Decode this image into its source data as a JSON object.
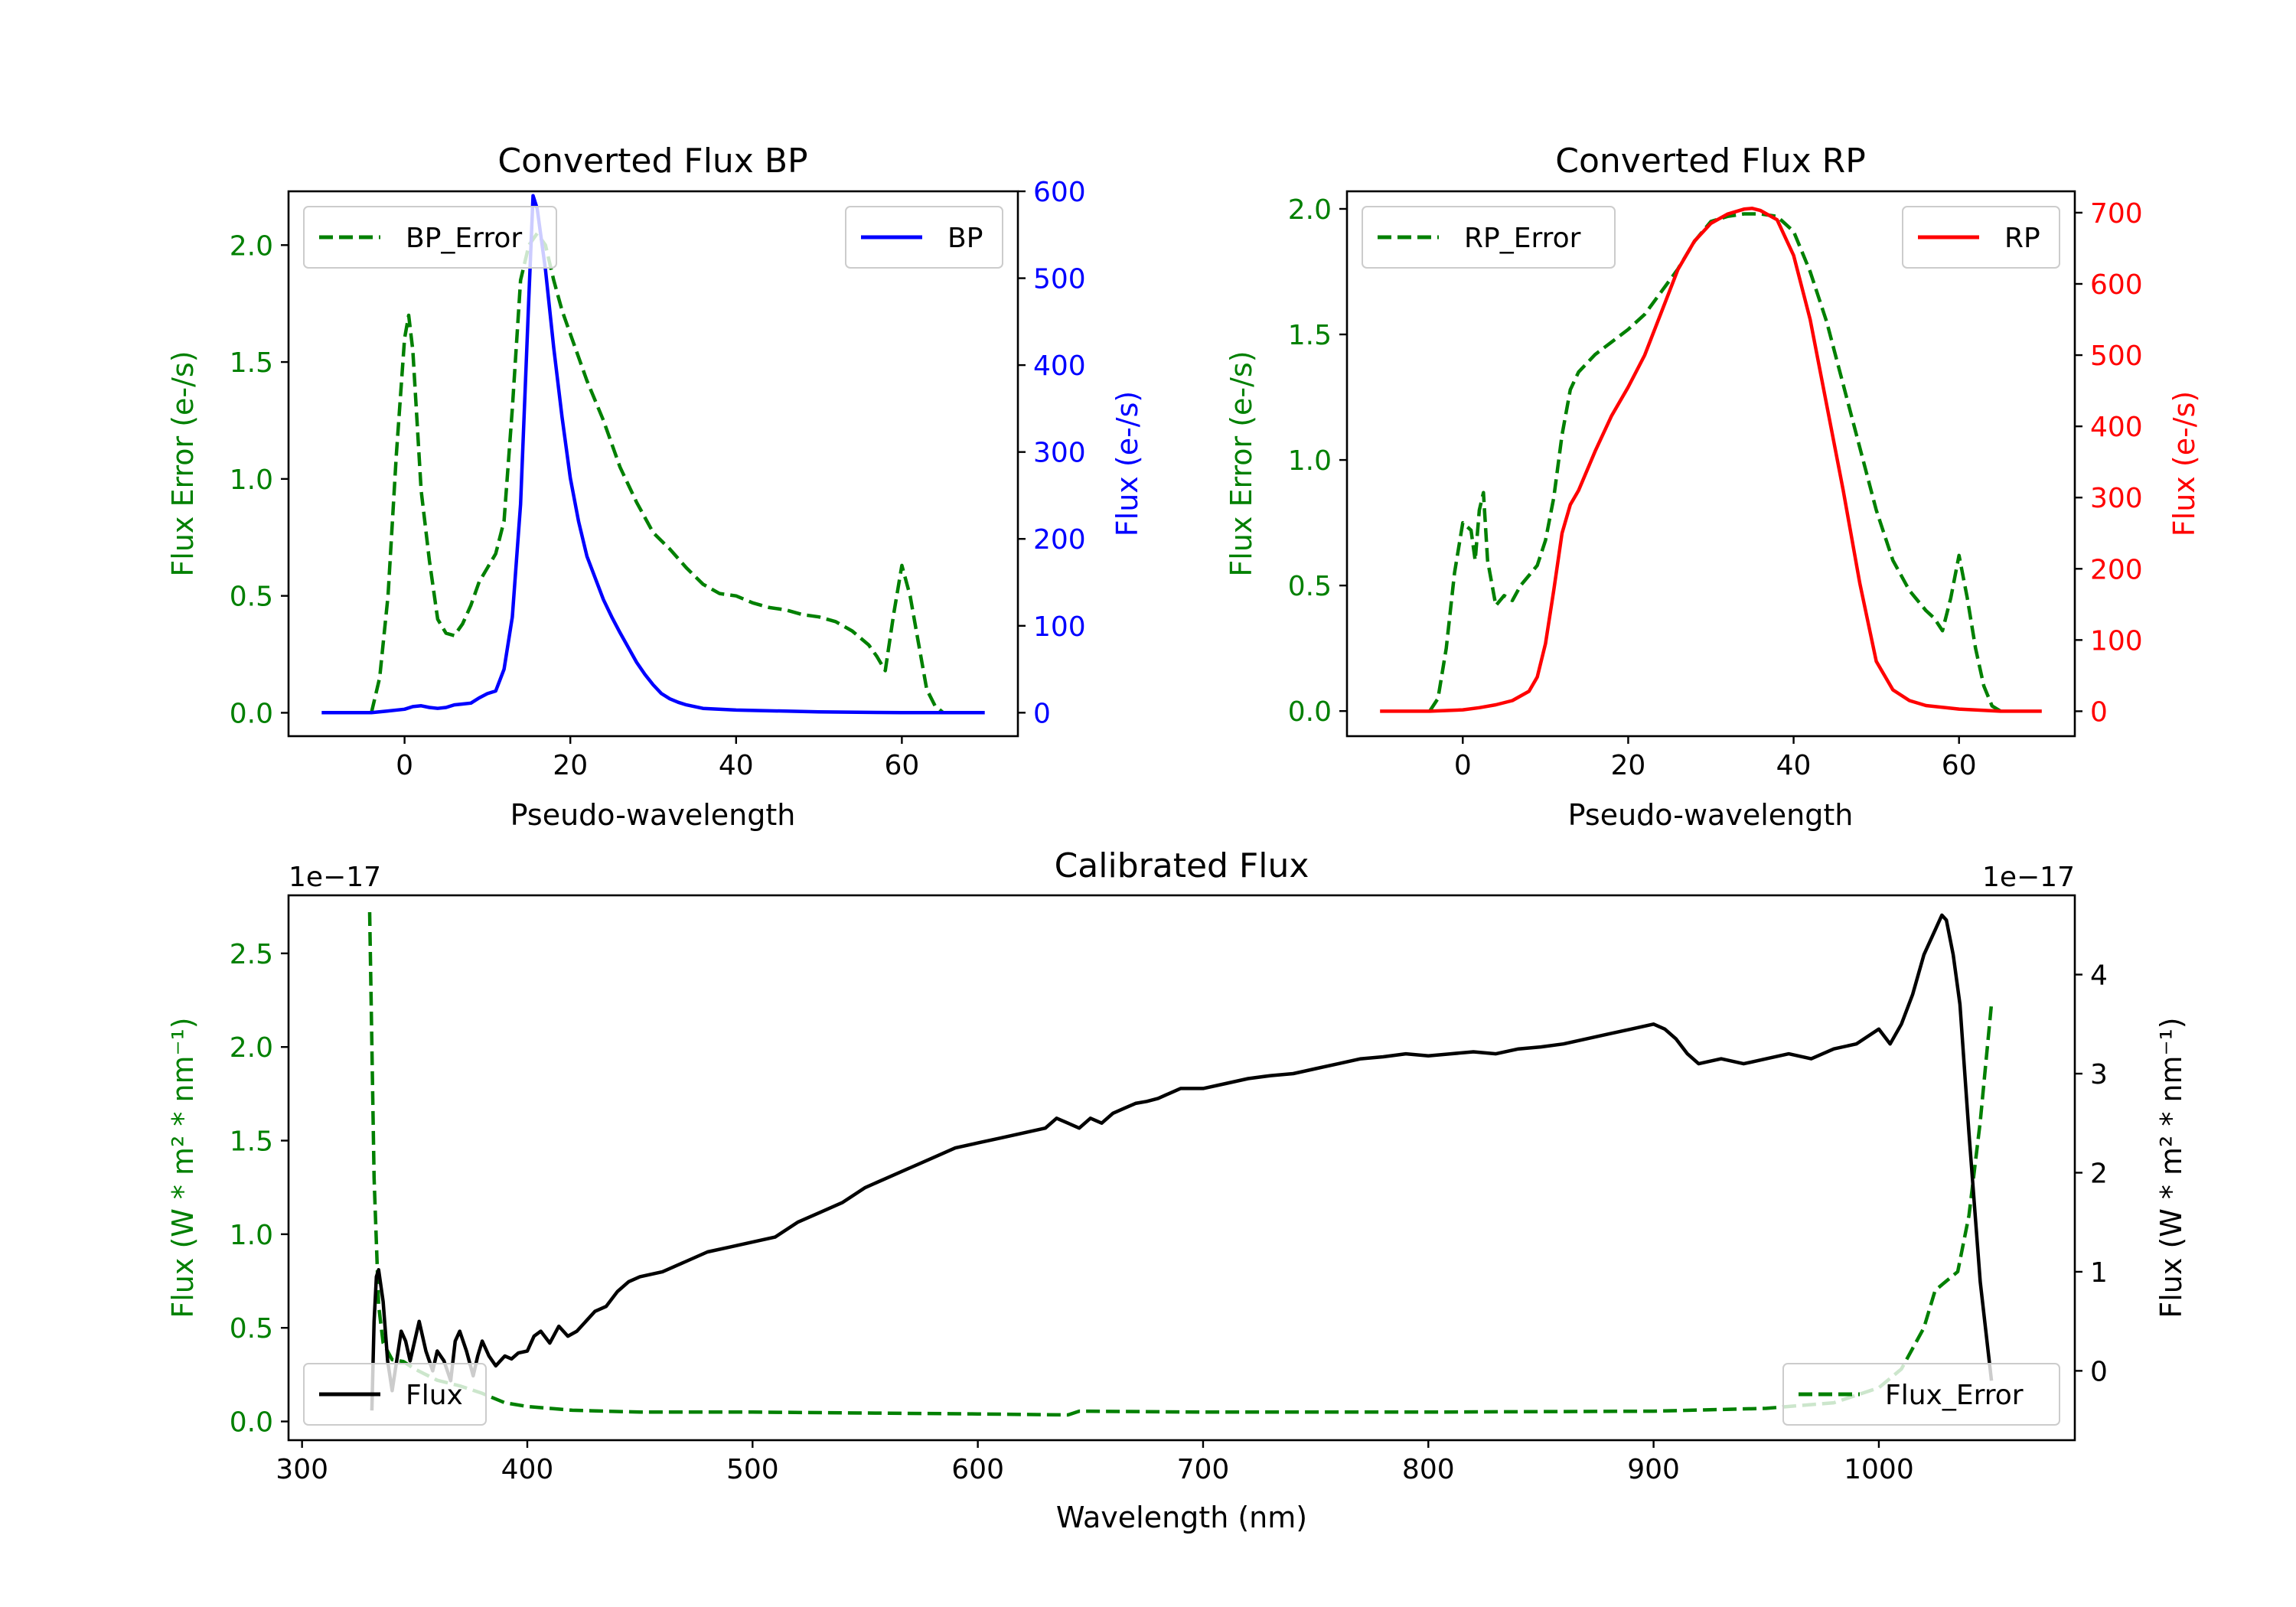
{
  "colors": {
    "error": "#008000",
    "bp": "#0000ff",
    "rp": "#ff0000",
    "flux": "#000000"
  },
  "chart_data": [
    {
      "id": "bp",
      "type": "line",
      "title": "Converted Flux BP",
      "xlabel": "Pseudo-wavelength",
      "ylabel_left": "Flux Error (e-/s)",
      "ylabel_right": "Flux (e-/s)",
      "xlim": [
        -14,
        74
      ],
      "ylim_left": [
        -0.1,
        2.23
      ],
      "ylim_right": [
        -27,
        600
      ],
      "xticks": [
        0,
        20,
        40,
        60
      ],
      "yticks_left": [
        0.0,
        0.5,
        1.0,
        1.5,
        2.0
      ],
      "yticks_right": [
        0,
        100,
        200,
        300,
        400,
        500,
        600
      ],
      "legend_left": "BP_Error",
      "legend_right": "BP",
      "series": [
        {
          "name": "BP_Error",
          "axis": "left",
          "style": "dashed",
          "color": "#008000",
          "x": [
            -4,
            -3,
            -2,
            -1,
            0,
            0.5,
            1,
            2,
            3,
            4,
            5,
            6,
            7,
            8,
            9,
            10,
            11,
            12,
            13,
            14,
            15,
            16,
            17,
            18,
            19,
            20,
            22,
            24,
            26,
            28,
            30,
            32,
            34,
            36,
            38,
            40,
            42,
            44,
            46,
            48,
            50,
            52,
            54,
            56,
            57,
            58,
            59,
            60,
            61,
            62,
            63,
            64,
            65
          ],
          "y": [
            0.0,
            0.15,
            0.5,
            1.1,
            1.6,
            1.7,
            1.55,
            0.95,
            0.65,
            0.4,
            0.34,
            0.33,
            0.38,
            0.46,
            0.56,
            0.62,
            0.68,
            0.82,
            1.3,
            1.85,
            2.0,
            2.05,
            2.0,
            1.85,
            1.72,
            1.62,
            1.42,
            1.25,
            1.05,
            0.9,
            0.77,
            0.7,
            0.62,
            0.55,
            0.51,
            0.5,
            0.47,
            0.45,
            0.44,
            0.42,
            0.41,
            0.39,
            0.35,
            0.29,
            0.24,
            0.18,
            0.42,
            0.63,
            0.5,
            0.3,
            0.1,
            0.03,
            0.0
          ]
        },
        {
          "name": "BP",
          "axis": "right",
          "style": "solid",
          "color": "#0000ff",
          "x": [
            -10,
            -6,
            -4,
            -2,
            0,
            1,
            2,
            3,
            4,
            5,
            6,
            7,
            8,
            9,
            10,
            11,
            12,
            13,
            14,
            15,
            15.5,
            16,
            17,
            18,
            19,
            20,
            21,
            22,
            23,
            24,
            25,
            26,
            27,
            28,
            29,
            30,
            31,
            32,
            33,
            34,
            36,
            40,
            50,
            60,
            70
          ],
          "y": [
            0,
            0,
            0,
            2,
            4,
            7,
            8,
            6,
            5,
            6,
            9,
            10,
            11,
            17,
            22,
            25,
            50,
            110,
            240,
            480,
            595,
            580,
            510,
            420,
            340,
            270,
            220,
            180,
            155,
            130,
            110,
            92,
            75,
            58,
            44,
            32,
            22,
            16,
            12,
            9,
            5,
            3,
            1,
            0,
            0
          ]
        }
      ]
    },
    {
      "id": "rp",
      "type": "line",
      "title": "Converted Flux RP",
      "xlabel": "Pseudo-wavelength",
      "ylabel_left": "Flux Error (e-/s)",
      "ylabel_right": "Flux (e-/s)",
      "xlim": [
        -14,
        74
      ],
      "ylim_left": [
        -0.1,
        2.07
      ],
      "ylim_right": [
        -35,
        730
      ],
      "xticks": [
        0,
        20,
        40,
        60
      ],
      "yticks_left": [
        0.0,
        0.5,
        1.0,
        1.5,
        2.0
      ],
      "yticks_right": [
        0,
        100,
        200,
        300,
        400,
        500,
        600,
        700
      ],
      "legend_left": "RP_Error",
      "legend_right": "RP",
      "series": [
        {
          "name": "RP_Error",
          "axis": "left",
          "style": "dashed",
          "color": "#008000",
          "x": [
            -4,
            -3,
            -2,
            -1,
            0,
            1,
            1.5,
            2,
            2.5,
            3,
            4,
            5,
            6,
            7,
            8,
            9,
            10,
            11,
            12,
            13,
            14,
            16,
            18,
            20,
            22,
            24,
            26,
            28,
            30,
            32,
            34,
            36,
            38,
            40,
            42,
            44,
            46,
            48,
            50,
            52,
            54,
            56,
            57,
            58,
            59,
            60,
            61,
            62,
            63,
            64,
            65
          ],
          "y": [
            0.0,
            0.05,
            0.25,
            0.55,
            0.75,
            0.72,
            0.6,
            0.8,
            0.87,
            0.6,
            0.42,
            0.46,
            0.44,
            0.5,
            0.54,
            0.58,
            0.68,
            0.85,
            1.1,
            1.28,
            1.35,
            1.42,
            1.47,
            1.52,
            1.58,
            1.67,
            1.76,
            1.87,
            1.95,
            1.97,
            1.98,
            1.98,
            1.97,
            1.91,
            1.75,
            1.55,
            1.3,
            1.05,
            0.8,
            0.6,
            0.48,
            0.4,
            0.37,
            0.32,
            0.45,
            0.62,
            0.45,
            0.25,
            0.1,
            0.02,
            0.0
          ]
        },
        {
          "name": "RP",
          "axis": "right",
          "style": "solid",
          "color": "#ff0000",
          "x": [
            -10,
            -4,
            0,
            2,
            4,
            6,
            8,
            9,
            10,
            11,
            12,
            13,
            14,
            16,
            18,
            20,
            22,
            24,
            26,
            28,
            30,
            32,
            34,
            35,
            36,
            38,
            40,
            42,
            44,
            46,
            48,
            50,
            52,
            54,
            56,
            60,
            65,
            70
          ],
          "y": [
            0,
            0,
            2,
            5,
            9,
            15,
            28,
            48,
            95,
            170,
            250,
            290,
            310,
            365,
            415,
            455,
            500,
            560,
            620,
            660,
            685,
            698,
            705,
            706,
            703,
            690,
            640,
            550,
            430,
            310,
            180,
            70,
            30,
            15,
            8,
            3,
            0,
            0
          ]
        }
      ]
    },
    {
      "id": "cal",
      "type": "line",
      "title": "Calibrated Flux",
      "xlabel": "Wavelength (nm)",
      "ylabel_left": "Flux (W * m² * nm⁻¹)",
      "ylabel_right": "Flux (W * m² * nm⁻¹)",
      "offset_left": "1e−17",
      "offset_right": "1e−17",
      "xlim": [
        294,
        1087
      ],
      "ylim_left": [
        -0.1,
        2.81
      ],
      "ylim_right": [
        -0.7,
        4.8
      ],
      "xticks": [
        300,
        400,
        500,
        600,
        700,
        800,
        900,
        1000
      ],
      "yticks_left": [
        0.0,
        0.5,
        1.0,
        1.5,
        2.0,
        2.5
      ],
      "yticks_right": [
        0,
        1,
        2,
        3,
        4
      ],
      "legend_left": "Flux",
      "legend_right": "Flux_Error",
      "series": [
        {
          "name": "Flux_Error",
          "axis": "left",
          "style": "dashed",
          "color": "#008000",
          "x": [
            330,
            332,
            334,
            336,
            340,
            345,
            350,
            360,
            370,
            380,
            390,
            400,
            420,
            450,
            500,
            550,
            600,
            640,
            645,
            700,
            800,
            900,
            950,
            980,
            1000,
            1010,
            1020,
            1025,
            1030,
            1035,
            1040,
            1045,
            1050
          ],
          "y": [
            2.72,
            1.3,
            0.62,
            0.42,
            0.33,
            0.32,
            0.28,
            0.22,
            0.19,
            0.15,
            0.1,
            0.08,
            0.06,
            0.05,
            0.05,
            0.045,
            0.04,
            0.035,
            0.055,
            0.05,
            0.05,
            0.055,
            0.07,
            0.1,
            0.18,
            0.28,
            0.5,
            0.7,
            0.75,
            0.8,
            1.1,
            1.6,
            2.23
          ]
        },
        {
          "name": "Flux",
          "axis": "right",
          "style": "solid",
          "color": "#000000",
          "x": [
            331,
            332,
            333,
            334,
            336,
            338,
            340,
            342,
            344,
            346,
            348,
            350,
            352,
            355,
            358,
            360,
            363,
            366,
            368,
            370,
            373,
            376,
            378,
            380,
            383,
            386,
            388,
            390,
            393,
            396,
            400,
            403,
            406,
            410,
            414,
            418,
            422,
            426,
            430,
            435,
            440,
            445,
            450,
            460,
            470,
            480,
            490,
            500,
            510,
            520,
            530,
            540,
            550,
            560,
            570,
            580,
            590,
            600,
            610,
            620,
            630,
            635,
            640,
            645,
            650,
            655,
            660,
            665,
            670,
            675,
            680,
            685,
            690,
            700,
            710,
            720,
            730,
            740,
            750,
            760,
            770,
            780,
            790,
            800,
            810,
            820,
            830,
            840,
            850,
            860,
            870,
            880,
            890,
            900,
            905,
            910,
            915,
            920,
            930,
            940,
            950,
            960,
            970,
            980,
            990,
            1000,
            1005,
            1010,
            1015,
            1020,
            1025,
            1028,
            1030,
            1033,
            1036,
            1040,
            1045,
            1050
          ],
          "y": [
            -0.4,
            0.5,
            0.95,
            1.02,
            0.7,
            0.1,
            -0.2,
            0.1,
            0.4,
            0.3,
            0.1,
            0.3,
            0.5,
            0.2,
            0.0,
            0.2,
            0.1,
            -0.1,
            0.3,
            0.4,
            0.2,
            -0.05,
            0.15,
            0.3,
            0.15,
            0.05,
            0.1,
            0.15,
            0.12,
            0.18,
            0.2,
            0.35,
            0.4,
            0.28,
            0.45,
            0.35,
            0.4,
            0.5,
            0.6,
            0.65,
            0.8,
            0.9,
            0.95,
            1.0,
            1.1,
            1.2,
            1.25,
            1.3,
            1.35,
            1.5,
            1.6,
            1.7,
            1.85,
            1.95,
            2.05,
            2.15,
            2.25,
            2.3,
            2.35,
            2.4,
            2.45,
            2.55,
            2.5,
            2.45,
            2.55,
            2.5,
            2.6,
            2.65,
            2.7,
            2.72,
            2.75,
            2.8,
            2.85,
            2.85,
            2.9,
            2.95,
            2.98,
            3.0,
            3.05,
            3.1,
            3.15,
            3.17,
            3.2,
            3.18,
            3.2,
            3.22,
            3.2,
            3.25,
            3.27,
            3.3,
            3.35,
            3.4,
            3.45,
            3.5,
            3.45,
            3.35,
            3.2,
            3.1,
            3.15,
            3.1,
            3.15,
            3.2,
            3.15,
            3.25,
            3.3,
            3.45,
            3.3,
            3.5,
            3.8,
            4.2,
            4.45,
            4.6,
            4.55,
            4.2,
            3.7,
            2.4,
            0.9,
            -0.1
          ]
        }
      ]
    }
  ]
}
